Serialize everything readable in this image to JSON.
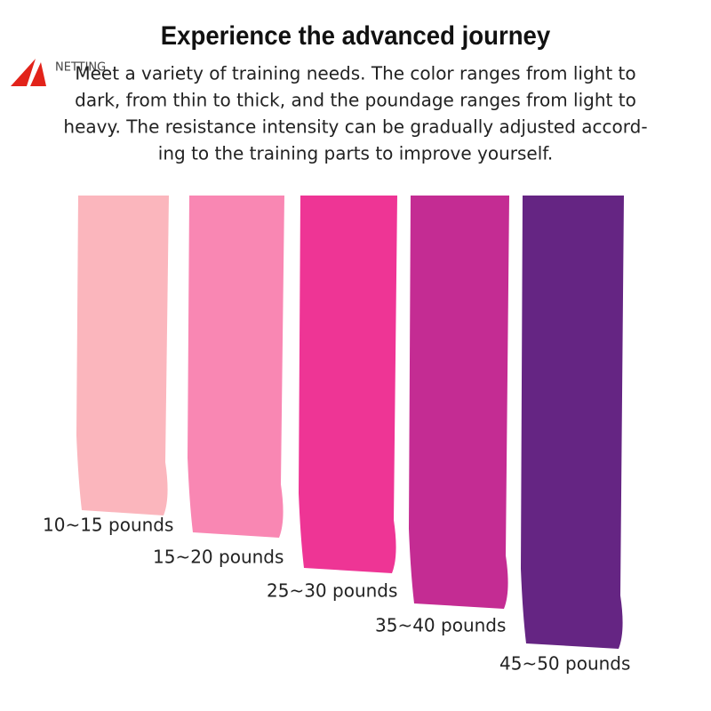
{
  "header": {
    "logo": "NETTING",
    "title": "Experience the advanced journey"
  },
  "description": [
    "Meet a variety of training needs. The color ranges from light to",
    "dark, from thin to thick, and the poundage ranges from light to",
    "heavy. The resistance intensity can be gradually adjusted accord-",
    "ing to the training parts to improve yourself."
  ],
  "bands": [
    {
      "label": "10~15 pounds",
      "color": "#fbb6bd"
    },
    {
      "label": "15~20 pounds",
      "color": "#f987b3"
    },
    {
      "label": "25~30 pounds",
      "color": "#ee3595"
    },
    {
      "label": "35~40 pounds",
      "color": "#c42c93"
    },
    {
      "label": "45~50 pounds",
      "color": "#652583"
    }
  ]
}
